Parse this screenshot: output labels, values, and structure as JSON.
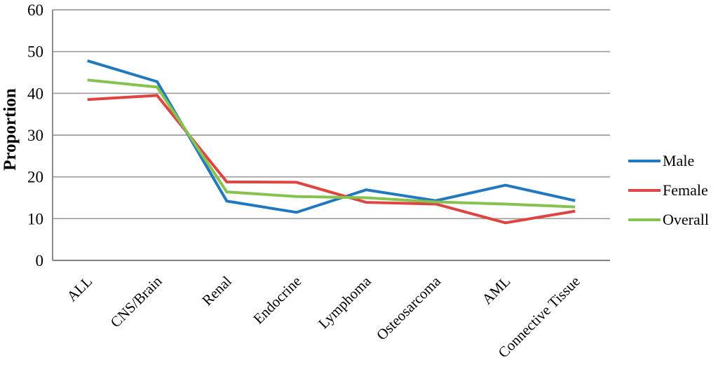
{
  "chart_data": {
    "type": "line",
    "title": "",
    "xlabel": "",
    "ylabel": "Proportion",
    "ylim": [
      0,
      60
    ],
    "yticks": [
      0,
      10,
      20,
      30,
      40,
      50,
      60
    ],
    "grid": "horizontal",
    "legend_position": "right",
    "categories": [
      "ALL",
      "CNS/Brain",
      "Renal",
      "Endocrine",
      "Lymphoma",
      "Osteosarcoma",
      "AML",
      "Connective Tissue"
    ],
    "series": [
      {
        "name": "Male",
        "color": "#2178BE",
        "values": [
          47.8,
          42.8,
          14.2,
          11.5,
          16.9,
          14.3,
          18.0,
          14.3
        ]
      },
      {
        "name": "Female",
        "color": "#DE4540",
        "values": [
          38.5,
          39.5,
          18.8,
          18.7,
          13.9,
          13.5,
          9.0,
          11.8
        ]
      },
      {
        "name": "Overall",
        "color": "#85C250",
        "values": [
          43.2,
          41.5,
          16.4,
          15.3,
          15.0,
          14.0,
          13.5,
          12.8
        ]
      }
    ],
    "colors": {
      "gridline": "#9C9C9C",
      "axis": "#808080",
      "text": "#000000"
    }
  }
}
